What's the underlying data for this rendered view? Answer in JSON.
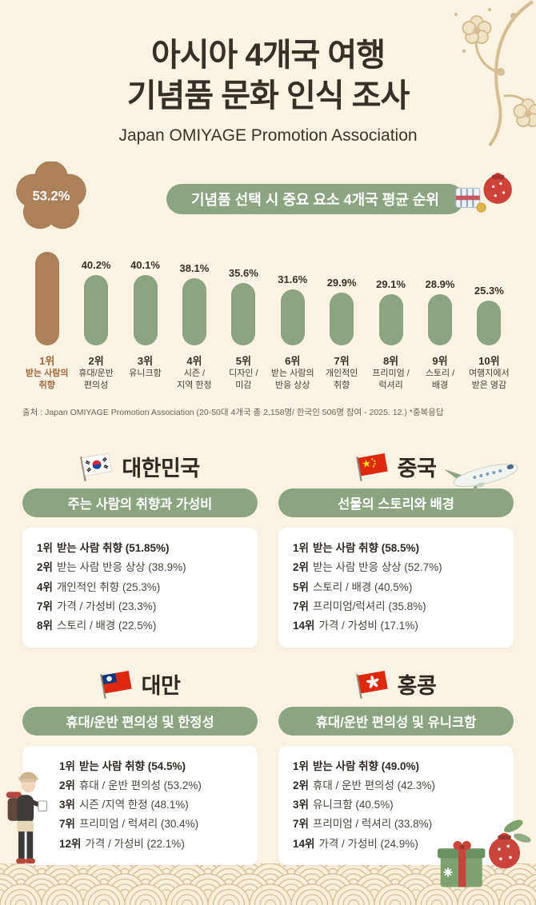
{
  "colors": {
    "background": "#faf3e3",
    "green": "#8da482",
    "brown": "#ac8159",
    "brown_text": "#a2673a",
    "red_accent": "#cf4238",
    "text_dark": "#36312a",
    "card_bg": "#ffffff"
  },
  "header": {
    "title_line1": "아시아 4개국 여행",
    "title_line2": "기념품 문화 인식 조사",
    "subtitle": "Japan OMIYAGE Promotion Association"
  },
  "chart_data": {
    "type": "bar",
    "title": "기념품 선택 시 중요 요소 4개국 평균 순위",
    "unit": "%",
    "ylim": [
      0,
      60
    ],
    "categories": [
      "1위 받는 사람의 취향",
      "2위 휴대/운반 편의성",
      "3위 유니크함",
      "4위 시즌 / 지역 한정",
      "5위 디자인 / 미감",
      "6위 받는 사람의 반응 상상",
      "7위 개인적인 취향",
      "8위 프리미엄 / 럭셔리",
      "9위 스토리 / 배경",
      "10위 여행지에서 받은 영감"
    ],
    "values": [
      53.2,
      40.2,
      40.1,
      38.1,
      35.6,
      31.6,
      29.9,
      29.1,
      28.9,
      25.3
    ],
    "bars": [
      {
        "rank": "1위",
        "lines": [
          "받는 사람의",
          "취향"
        ],
        "value": 53.2,
        "highlight": true
      },
      {
        "rank": "2위",
        "lines": [
          "휴대/운반",
          "편의성"
        ],
        "value": 40.2,
        "highlight": false
      },
      {
        "rank": "3위",
        "lines": [
          "유니크함"
        ],
        "value": 40.1,
        "highlight": false
      },
      {
        "rank": "4위",
        "lines": [
          "시즌 /",
          "지역 한정"
        ],
        "value": 38.1,
        "highlight": false
      },
      {
        "rank": "5위",
        "lines": [
          "디자인 /",
          "미감"
        ],
        "value": 35.6,
        "highlight": false
      },
      {
        "rank": "6위",
        "lines": [
          "받는 사람의",
          "반응 상상"
        ],
        "value": 31.6,
        "highlight": false
      },
      {
        "rank": "7위",
        "lines": [
          "개인적인",
          "취향"
        ],
        "value": 29.9,
        "highlight": false
      },
      {
        "rank": "8위",
        "lines": [
          "프리미엄 /",
          "럭셔리"
        ],
        "value": 29.1,
        "highlight": false
      },
      {
        "rank": "9위",
        "lines": [
          "스토리 /",
          "배경"
        ],
        "value": 28.9,
        "highlight": false
      },
      {
        "rank": "10위",
        "lines": [
          "여행지에서",
          "받은 영감"
        ],
        "value": 25.3,
        "highlight": false
      }
    ]
  },
  "source": "출처 : Japan OMIYAGE Promotion Association (20-50대 4개국 총 2,158명/ 한국인 506명 참여 - 2025. 12.) *중복응답",
  "countries": [
    {
      "name": "대한민국",
      "flag": "kr",
      "tagline": "주는 사람의 취향과 가성비",
      "rows": [
        {
          "rank": "1위",
          "text": "받는 사람 취향 (51.85%)"
        },
        {
          "rank": "2위",
          "text": "받는 사람 반응 상상 (38.9%)"
        },
        {
          "rank": "4위",
          "text": "개인적인 취향 (25.3%)"
        },
        {
          "rank": "7위",
          "text": "가격 / 가성비 (23.3%)"
        },
        {
          "rank": "8위",
          "text": "스토리 / 배경 (22.5%)"
        }
      ]
    },
    {
      "name": "중국",
      "flag": "cn",
      "tagline": "선물의 스토리와 배경",
      "rows": [
        {
          "rank": "1위",
          "text": "받는 사람 취향 (58.5%)"
        },
        {
          "rank": "2위",
          "text": "받는 사람 반응 상상 (52.7%)"
        },
        {
          "rank": "5위",
          "text": "스토리 / 배경 (40.5%)"
        },
        {
          "rank": "7위",
          "text": "프리미엄/럭셔리 (35.8%)"
        },
        {
          "rank": "14위",
          "text": "가격 / 가성비 (17.1%)"
        }
      ]
    },
    {
      "name": "대만",
      "flag": "tw",
      "tagline": "휴대/운반 편의성 및 한정성",
      "rows": [
        {
          "rank": "1위",
          "text": "받는 사람 취향 (54.5%)"
        },
        {
          "rank": "2위",
          "text": "휴대 / 운반 편의성 (53.2%)"
        },
        {
          "rank": "3위",
          "text": "시즌 /지역 한정 (48.1%)"
        },
        {
          "rank": "7위",
          "text": "프리미엄 / 럭셔리 (30.4%)"
        },
        {
          "rank": "12위",
          "text": "가격 / 가성비 (22.1%)"
        }
      ]
    },
    {
      "name": "홍콩",
      "flag": "hk",
      "tagline": "휴대/운반 편의성 및 유니크함",
      "rows": [
        {
          "rank": "1위",
          "text": "받는 사람 취향 (49.0%)"
        },
        {
          "rank": "2위",
          "text": "휴대 / 운반 편의성 (42.3%)"
        },
        {
          "rank": "3위",
          "text": "유니크함 (40.5%)"
        },
        {
          "rank": "7위",
          "text": "프리미엄 / 럭셔리 (33.8%)"
        },
        {
          "rank": "14위",
          "text": "가격 / 가성비 (24.9%)"
        }
      ]
    }
  ],
  "decorations": {
    "top_right": "plum-blossom-branch",
    "chart_right": "gift-bundle",
    "mid_right": "airplane",
    "bottom_left": "traveler-illustration",
    "bottom_right": "gift-boxes",
    "footer": "seigaiha-wave-pattern"
  }
}
